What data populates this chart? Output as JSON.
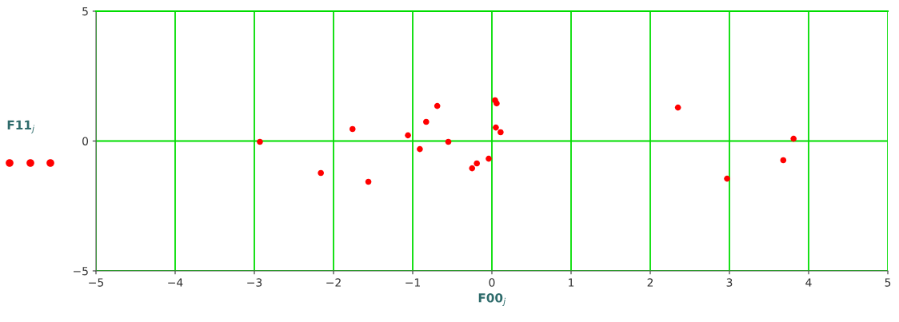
{
  "chart_data": {
    "type": "scatter",
    "xlabel": "F00$_{j}$",
    "ylabel": "F11$_{j}$",
    "x": [
      -2.93,
      -2.16,
      -1.76,
      -1.56,
      -1.06,
      -0.91,
      -0.83,
      -0.69,
      -0.55,
      -0.25,
      -0.19,
      -0.04,
      0.04,
      0.06,
      0.05,
      0.11,
      2.35,
      2.97,
      3.68,
      3.81
    ],
    "series": [
      {
        "color": "#ff0000",
        "values": [
          -0.03,
          -1.23,
          0.46,
          -1.57,
          0.22,
          -0.31,
          0.74,
          1.35,
          -0.03,
          -1.05,
          -0.86,
          -0.68,
          1.57,
          1.45,
          0.52,
          0.34,
          1.29,
          -1.45,
          -0.74,
          0.09
        ]
      }
    ],
    "xlim": [
      -5,
      5
    ],
    "ylim": [
      -5,
      5
    ],
    "xticks": [
      -5,
      -4,
      -3,
      -2,
      -1,
      0,
      1,
      2,
      3,
      4,
      5
    ],
    "yticks": [
      -5,
      0,
      5
    ],
    "grid": true,
    "marker": "circle"
  }
}
